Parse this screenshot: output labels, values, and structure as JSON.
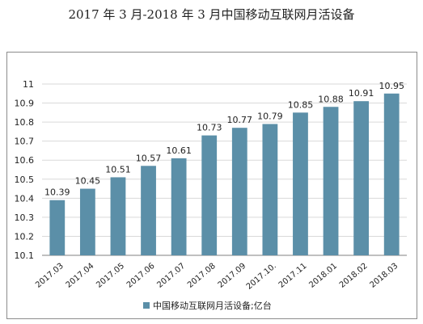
{
  "chart_data": {
    "type": "bar",
    "title": "2017 年 3 月-2018 年 3 月中国移动互联网月活设备",
    "categories": [
      "2017.03",
      "2017.04",
      "2017.05",
      "2017.06",
      "2017.07",
      "2017.08",
      "2017.09",
      "2017.10.",
      "2017.11",
      "2018.01",
      "2018.02",
      "2018.03"
    ],
    "series": [
      {
        "name": "中国移动互联网月活设备;亿台",
        "values": [
          10.39,
          10.45,
          10.51,
          10.57,
          10.61,
          10.73,
          10.77,
          10.79,
          10.85,
          10.88,
          10.91,
          10.95
        ],
        "labels": [
          "10.39",
          "10.45",
          "10.51",
          "10.57",
          "10.61",
          "10.73",
          "10.77",
          "10.79",
          "10.85",
          "10.88",
          "10.91",
          "10.95"
        ]
      }
    ],
    "yticks": [
      "10.1",
      "10.2",
      "10.3",
      "10.4",
      "10.5",
      "10.6",
      "10.7",
      "10.8",
      "10.9",
      "11"
    ],
    "ylim": [
      10.1,
      11
    ],
    "xlabel": "",
    "ylabel": "",
    "grid": true,
    "legend": "bottom",
    "colors": {
      "bar": "#5B8FA8",
      "grid": "#d9d9d9",
      "axis": "#808080",
      "text": "#222222"
    }
  }
}
